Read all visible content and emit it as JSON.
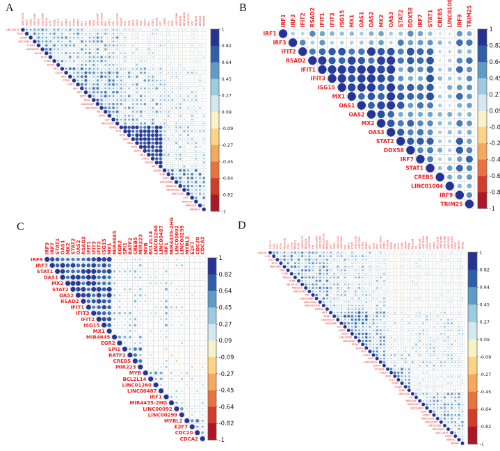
{
  "figure": {
    "background": "#ffffff",
    "label_color": "#ee2222",
    "tick_color": "#1a1a1a",
    "grid_color": "#d6d6d6"
  },
  "colorbar": {
    "ticks": [
      "1",
      "0.82",
      "0.64",
      "0.45",
      "0.27",
      "0.09",
      "-0.09",
      "-0.27",
      "-0.45",
      "-0.64",
      "-0.82",
      "-1"
    ],
    "colors": [
      "#253494",
      "#2f5fa8",
      "#5f9bc8",
      "#9dcbe2",
      "#d4e8f2",
      "#f8f2c7",
      "#fdd485",
      "#f6a85e",
      "#ea7240",
      "#d33b2b",
      "#ab1726"
    ],
    "range": [
      1,
      -1
    ]
  },
  "chart_data": [
    {
      "panel": "A",
      "type": "heatmap",
      "subtype": "correlogram-upper-triangle",
      "legend_position": "right-colorbar",
      "axis_range": [
        1,
        -1
      ],
      "labels": [
        "LINC00574",
        "REST",
        "CREM",
        "LINC00861",
        "FOXP3",
        "LINC00899",
        "BACH2",
        "KLF2",
        "FOSB",
        "KLF13",
        "IRF2",
        "STAT4",
        "IRF5",
        "PTPRC",
        "STAT3",
        "IRF1",
        "IRF3",
        "KAT5",
        "RELA",
        "LINC00487",
        "LINC00604",
        "MX2",
        "STAT2",
        "CD4",
        "LINC00426",
        "RSAD2",
        "IFIT1",
        "IFIT3",
        "OAS1",
        "OAS2",
        "IFIT2",
        "ISG15",
        "MX1",
        "STAT1",
        "DDX58",
        "IRF7",
        "CEBPB",
        "IL1B",
        "ATF3",
        "LINC00968",
        "MIR3945",
        "MIR3945HG",
        "LINC01001",
        "SPI1",
        "MIR4530",
        "MIR6326",
        "MIR6829"
      ],
      "value_model": {
        "note": "estimated correlation structure read from circle sizes/colors",
        "groups": [
          0,
          0,
          0,
          0,
          0,
          0,
          0,
          0,
          0,
          0,
          1,
          1,
          1,
          1,
          1,
          1,
          1,
          1,
          1,
          1,
          1,
          1,
          1,
          1,
          1,
          2,
          2,
          2,
          2,
          2,
          2,
          2,
          2,
          2,
          2,
          2,
          3,
          3,
          3,
          3,
          3,
          3,
          3,
          3,
          3,
          3,
          3
        ],
        "group_corr": [
          [
            0.5,
            0.42,
            0.22,
            0.12
          ],
          [
            0.42,
            0.55,
            0.4,
            0.25
          ],
          [
            0.22,
            0.4,
            0.85,
            0.3
          ],
          [
            0.12,
            0.25,
            0.3,
            0.5
          ]
        ],
        "jitter": 0.22,
        "seed": 11
      }
    },
    {
      "panel": "B",
      "type": "heatmap",
      "subtype": "correlogram-upper-triangle",
      "legend_position": "right-colorbar",
      "axis_range": [
        1,
        -1
      ],
      "labels": [
        "IRF1",
        "IRF3",
        "IFIT2",
        "RSAD2",
        "IFIT1",
        "IFIT3",
        "ISG15",
        "MX1",
        "OAS1",
        "OAS2",
        "MX2",
        "OAS3",
        "STAT2",
        "DDX58",
        "IRF7",
        "STAT1",
        "CREB5",
        "LINC01004",
        "IRF9",
        "TRIM25"
      ],
      "value_model": {
        "note": "estimated correlation structure read from circle sizes/colors",
        "groups": [
          0,
          0,
          1,
          1,
          1,
          1,
          1,
          1,
          1,
          1,
          1,
          1,
          2,
          2,
          2,
          2,
          3,
          3,
          4,
          4
        ],
        "group_corr": [
          [
            0.55,
            0.48,
            0.55,
            0.3,
            0.6
          ],
          [
            0.48,
            0.88,
            0.7,
            0.35,
            0.6
          ],
          [
            0.55,
            0.7,
            0.7,
            0.4,
            0.65
          ],
          [
            0.3,
            0.35,
            0.4,
            0.55,
            0.45
          ],
          [
            0.6,
            0.6,
            0.65,
            0.45,
            0.75
          ]
        ],
        "jitter": 0.18,
        "seed": 7
      }
    },
    {
      "panel": "C",
      "type": "heatmap",
      "subtype": "correlogram-upper-triangle",
      "legend_position": "right-colorbar",
      "axis_range": [
        1,
        -1
      ],
      "labels": [
        "IRF9",
        "IRF7",
        "STAT1",
        "OAS1",
        "MX2",
        "STAT2",
        "OAS2",
        "RSAD2",
        "IFIT1",
        "IFIT3",
        "IFIT2",
        "ISG15",
        "MX1",
        "MIR4645",
        "EGR2",
        "SPI1",
        "BATF2",
        "CREB5",
        "MIR223",
        "MYB",
        "BCL2L14",
        "LINC01260",
        "LINC00487",
        "IRF1",
        "MIR4435-2HG",
        "LINC00092",
        "LINC00299",
        "MYBL2",
        "E2F7",
        "CDC20",
        "CDCA2"
      ],
      "value_model": {
        "note": "estimated correlation structure read from circle sizes/colors",
        "groups": [
          0,
          0,
          0,
          0,
          0,
          0,
          0,
          0,
          0,
          0,
          0,
          0,
          0,
          1,
          1,
          2,
          2,
          2,
          2,
          3,
          3,
          3,
          3,
          4,
          5,
          5,
          5,
          6,
          6,
          6,
          6
        ],
        "group_corr": [
          [
            0.85,
            0.3,
            0.3,
            0.15,
            0.35,
            0.2,
            0.1
          ],
          [
            0.3,
            0.45,
            0.35,
            0.15,
            0.2,
            0.15,
            0.05
          ],
          [
            0.3,
            0.35,
            0.6,
            0.1,
            0.3,
            -0.12,
            -0.15
          ],
          [
            0.15,
            0.15,
            0.1,
            0.5,
            0.25,
            0.2,
            0.2
          ],
          [
            0.35,
            0.2,
            0.3,
            0.25,
            0.6,
            0.25,
            0.05
          ],
          [
            0.2,
            0.15,
            -0.12,
            0.2,
            0.25,
            0.5,
            0.2
          ],
          [
            0.1,
            0.05,
            -0.15,
            0.2,
            0.05,
            0.2,
            0.55
          ]
        ],
        "jitter": 0.18,
        "seed": 13
      }
    },
    {
      "panel": "D",
      "type": "heatmap",
      "subtype": "correlogram-upper-triangle",
      "legend_position": "right-colorbar",
      "axis_range": [
        1,
        -1
      ],
      "labels": [
        "CXCL10",
        "IL1B",
        "IL10",
        "ATF3",
        "MIR22HG",
        "CD4",
        "CCR2",
        "MIR223",
        "TLR4",
        "LINC00173",
        "MIR3153",
        "LINC01465",
        "TNF",
        "LINC00963",
        "LINC01363",
        "MIR181A1HG",
        "MIR616",
        "IRF7",
        "STAT1",
        "LINC00115",
        "LINC00847",
        "SP1",
        "XBP1",
        "EP300",
        "LINC00265",
        "LINC00921",
        "PTPRC",
        "STAT3",
        "IRF1",
        "RELA",
        "IRF3",
        "LINC00672",
        "STAT4",
        "FCGR2B",
        "TBX21",
        "IFNG",
        "CCL5",
        "CD8A",
        "ITGAM",
        "CD81",
        "MIR3194",
        "IL6",
        "MIR5196",
        "LINC01623",
        "LINC01484",
        "CCR7",
        "FOXO1",
        "MIR155HG",
        "LINC01355",
        "LINC01588",
        "LINC00641",
        "LINC01619",
        "CREM",
        "MIR592",
        "NFKB1"
      ],
      "value_model": {
        "note": "estimated correlation structure read from circle sizes/colors",
        "groups": [
          0,
          0,
          0,
          0,
          0,
          0,
          0,
          0,
          0,
          0,
          0,
          0,
          0,
          0,
          0,
          0,
          0,
          1,
          1,
          1,
          1,
          1,
          1,
          1,
          1,
          1,
          1,
          1,
          2,
          2,
          2,
          2,
          2,
          3,
          3,
          3,
          3,
          3,
          3,
          3,
          4,
          4,
          4,
          4,
          4,
          4,
          4,
          4,
          4,
          4,
          4,
          4,
          4,
          4,
          4
        ],
        "group_corr": [
          [
            0.5,
            0.35,
            0.3,
            -0.05,
            0.15
          ],
          [
            0.35,
            0.6,
            0.45,
            0.2,
            0.3
          ],
          [
            0.3,
            0.45,
            0.55,
            0.3,
            0.3
          ],
          [
            -0.05,
            0.2,
            0.3,
            0.55,
            0.2
          ],
          [
            0.15,
            0.3,
            0.3,
            0.2,
            0.45
          ]
        ],
        "jitter": 0.2,
        "seed": 5
      }
    }
  ]
}
